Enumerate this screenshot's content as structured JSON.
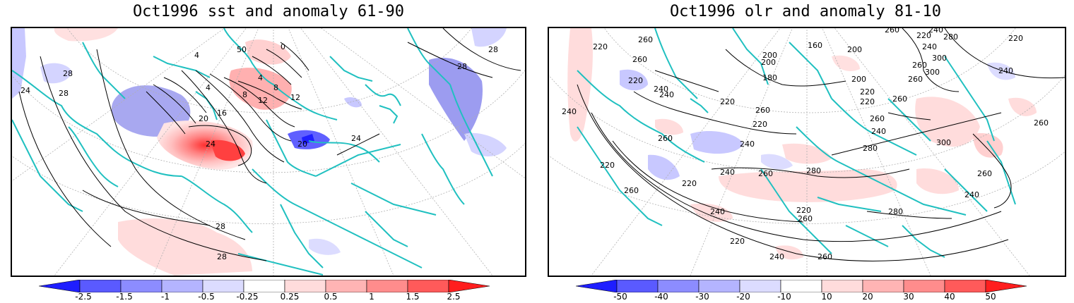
{
  "left_panel": {
    "title": "Oct1996 sst and anomaly 61-90",
    "contour_labels": [
      "24",
      "28",
      "28",
      "28",
      "4",
      "4",
      "8",
      "12",
      "8",
      "4",
      "0",
      "12",
      "16",
      "20",
      "24",
      "20",
      "24",
      "28",
      "28",
      "28",
      "50"
    ],
    "colorbar": {
      "levels": [
        "-2.5",
        "-1.5",
        "-1",
        "-0.5",
        "-0.25",
        "0.25",
        "0.5",
        "1",
        "1.5",
        "2.5"
      ],
      "colors": [
        "#1e1eff",
        "#5a5aff",
        "#8c8cff",
        "#b4b4ff",
        "#dcdcff",
        "#ffffff",
        "#ffdcdc",
        "#ffb4b4",
        "#ff8c8c",
        "#ff5a5a",
        "#ff1e1e"
      ]
    }
  },
  "right_panel": {
    "title": "Oct1996 olr and anomaly 81-10",
    "contour_labels": [
      "260",
      "220",
      "260",
      "220",
      "240",
      "240",
      "160",
      "200",
      "220",
      "240",
      "280",
      "200",
      "220",
      "240",
      "260",
      "300",
      "200",
      "180",
      "200",
      "260",
      "220",
      "240",
      "260",
      "220",
      "220",
      "260",
      "240",
      "220",
      "300",
      "260",
      "260",
      "240",
      "260",
      "240",
      "280",
      "260",
      "300",
      "280",
      "220",
      "240",
      "260",
      "220",
      "240",
      "220",
      "280",
      "240",
      "260",
      "260",
      "260",
      "220",
      "260",
      "240"
    ],
    "colorbar": {
      "levels": [
        "-50",
        "-40",
        "-30",
        "-20",
        "-10",
        "10",
        "20",
        "30",
        "40",
        "50"
      ],
      "colors": [
        "#1e1eff",
        "#5a5aff",
        "#8c8cff",
        "#b4b4ff",
        "#dcdcff",
        "#ffffff",
        "#ffdcdc",
        "#ffb4b4",
        "#ff8c8c",
        "#ff5a5a",
        "#ff1e1e"
      ]
    }
  },
  "colors": {
    "coastline": "#20c0c0",
    "contour": "#000000",
    "grid": "#b0b0b0"
  }
}
